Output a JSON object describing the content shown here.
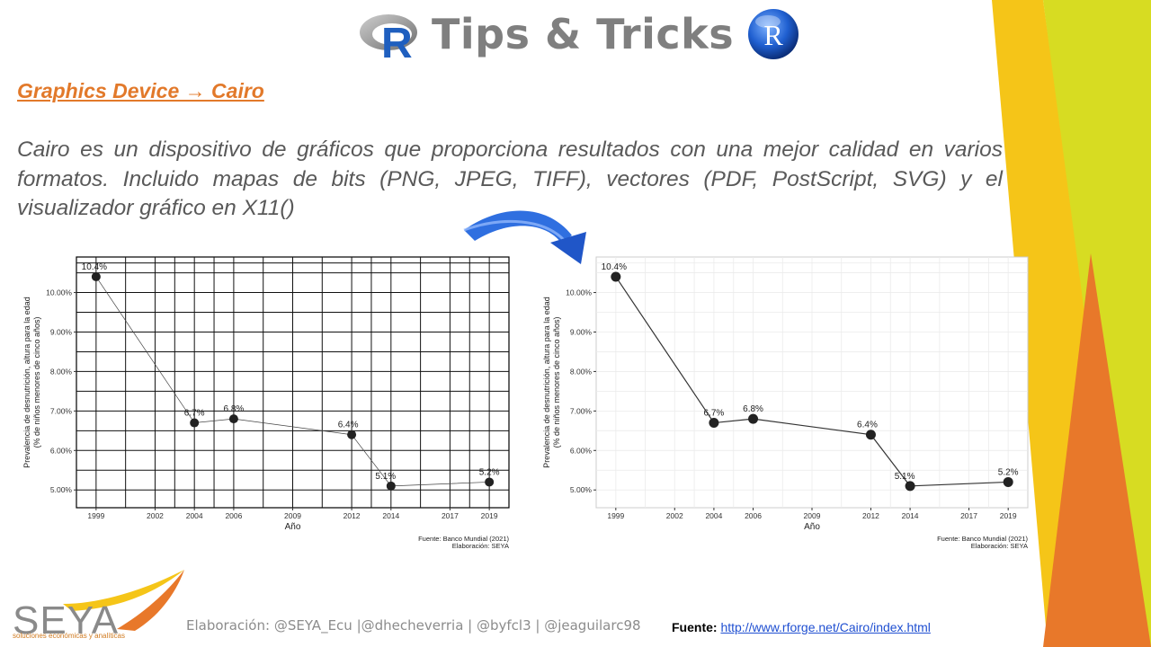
{
  "header": {
    "title": "Tips & Tricks",
    "left_logo_letter": "R",
    "right_logo_letter": "R"
  },
  "content": {
    "heading": "Graphics Device → Cairo",
    "paragraph": "Cairo es un dispositivo de gráficos que proporciona resultados con una mejor calidad en varios formatos. Incluido mapas de bits (PNG, JPEG, TIFF), vectores (PDF, PostScript, SVG) y el visualizador gráfico en X11()"
  },
  "colors": {
    "accent_orange": "#e2792a",
    "accent_yellow": "#f5c518",
    "accent_lime": "#d7dc22",
    "arrow_blue": "#2f6fe0",
    "text_gray": "#595959"
  },
  "chart_data": [
    {
      "type": "line",
      "style": "default",
      "x": [
        1999,
        2004,
        2006,
        2012,
        2014,
        2019
      ],
      "values": [
        10.4,
        6.7,
        6.8,
        6.4,
        5.1,
        5.2
      ],
      "point_labels": [
        "10.4%",
        "6.7%",
        "6.8%",
        "6.4%",
        "5.1%",
        "5.2%"
      ],
      "x_ticks": [
        "1999",
        "2002",
        "2004",
        "2006",
        "2009",
        "2012",
        "2014",
        "2017",
        "2019"
      ],
      "y_ticks": [
        "5.00%",
        "6.00%",
        "7.00%",
        "8.00%",
        "9.00%",
        "10.00%"
      ],
      "xlabel": "Año",
      "ylabel_line1": "Prevalencia de desnutrición, altura para la edad",
      "ylabel_line2": "(% de niños menores de cinco años)",
      "caption_line1": "Fuente: Banco Mundial (2021)",
      "caption_line2": "Elaboración: SEYA",
      "grid": "black"
    },
    {
      "type": "line",
      "style": "cairo",
      "x": [
        1999,
        2004,
        2006,
        2012,
        2014,
        2019
      ],
      "values": [
        10.4,
        6.7,
        6.8,
        6.4,
        5.1,
        5.2
      ],
      "point_labels": [
        "10.4%",
        "6.7%",
        "6.8%",
        "6.4%",
        "5.1%",
        "5.2%"
      ],
      "x_ticks": [
        "1999",
        "2002",
        "2004",
        "2006",
        "2009",
        "2012",
        "2014",
        "2017",
        "2019"
      ],
      "y_ticks": [
        "5.00%",
        "6.00%",
        "7.00%",
        "8.00%",
        "9.00%",
        "10.00%"
      ],
      "xlabel": "Año",
      "ylabel_line1": "Prevalencia de desnutrición, altura para la edad",
      "ylabel_line2": "(% de niños menores de cinco años)",
      "caption_line1": "Fuente: Banco Mundial (2021)",
      "caption_line2": "Elaboración: SEYA",
      "grid": "light"
    }
  ],
  "footer": {
    "credits": "Elaboración: @SEYA_Ecu |@dhecheverria | @byfcl3 | @jeaguilarc98",
    "source_label": "Fuente:",
    "source_link": "http://www.rforge.net/Cairo/index.html",
    "logo_text": "SEYA",
    "logo_subtitle": "soluciones económicas y analíticas"
  }
}
